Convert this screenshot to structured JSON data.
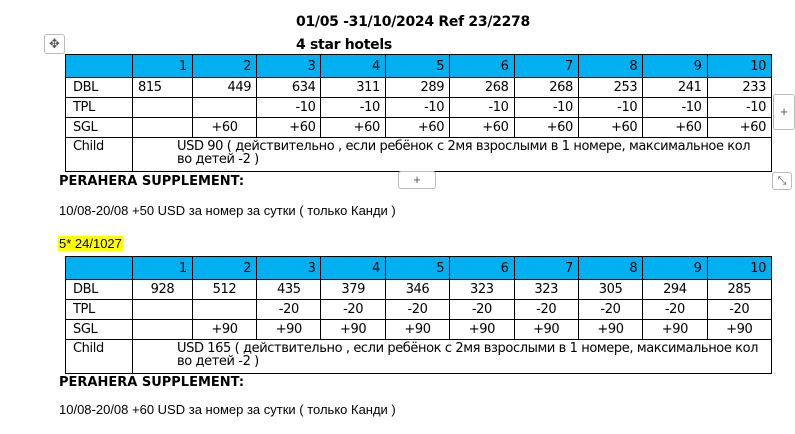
{
  "header": {
    "title": "01/05 -31/10/2024  Ref    23/2278",
    "subtitle": "4 star hotels"
  },
  "table1": {
    "columns": [
      "",
      "1",
      "2",
      "3",
      "4",
      "5",
      "6",
      "7",
      "8",
      "9",
      "10"
    ],
    "rows": [
      {
        "label": "DBL",
        "values": [
          "815",
          "449",
          "634",
          "311",
          "289",
          "268",
          "268",
          "253",
          "241",
          "233"
        ]
      },
      {
        "label": "TPL",
        "values": [
          "",
          "",
          "-10",
          "-10",
          "-10",
          "-10",
          "-10",
          "-10",
          "-10",
          "-10"
        ]
      },
      {
        "label": "SGL",
        "values": [
          "",
          "+60",
          "+60",
          "+60",
          "+60",
          "+60",
          "+60",
          "+60",
          "+60",
          "+60"
        ]
      }
    ],
    "child_label": "Child",
    "child_text": "USD 90   ( действительно , если ребёнок с 2мя взрослыми в 1 номере, максимальное кол во детей -2 )"
  },
  "supplement1": {
    "heading": "PERAHERA SUPPLEMENT:",
    "text": "10/08-20/08 +50 USD за номер за сутки ( только Канди )"
  },
  "section2_label": "5* 24/1027",
  "table2": {
    "columns": [
      "",
      "1",
      "2",
      "3",
      "4",
      "5",
      "6",
      "7",
      "8",
      "9",
      "10"
    ],
    "rows": [
      {
        "label": "DBL",
        "values": [
          "928",
          "512",
          "435",
          "379",
          "346",
          "323",
          "323",
          "305",
          "294",
          "285"
        ]
      },
      {
        "label": "TPL",
        "values": [
          "",
          "",
          "-20",
          "-20",
          "-20",
          "-20",
          "-20",
          "-20",
          "-20",
          "-20"
        ]
      },
      {
        "label": "SGL",
        "values": [
          "",
          "+90",
          "+90",
          "+90",
          "+90",
          "+90",
          "+90",
          "+90",
          "+90",
          "+90"
        ]
      }
    ],
    "child_label": "Child",
    "child_text": "USD 165   ( действительно , если ребёнок с 2мя взрослыми в 1 номере, максимальное кол во детей -2 )"
  },
  "supplement2": {
    "heading": "PERAHERA SUPPLEMENT:",
    "text": "10/08-20/08 +60 USD за номер за сутки ( только Канди )"
  },
  "controls": {
    "move_icon": "✥",
    "add_row": "+",
    "add_col": "+",
    "resize_icon": "⤡"
  },
  "colors": {
    "header_bg": "#00b0f0",
    "highlight": "#ffff00"
  }
}
